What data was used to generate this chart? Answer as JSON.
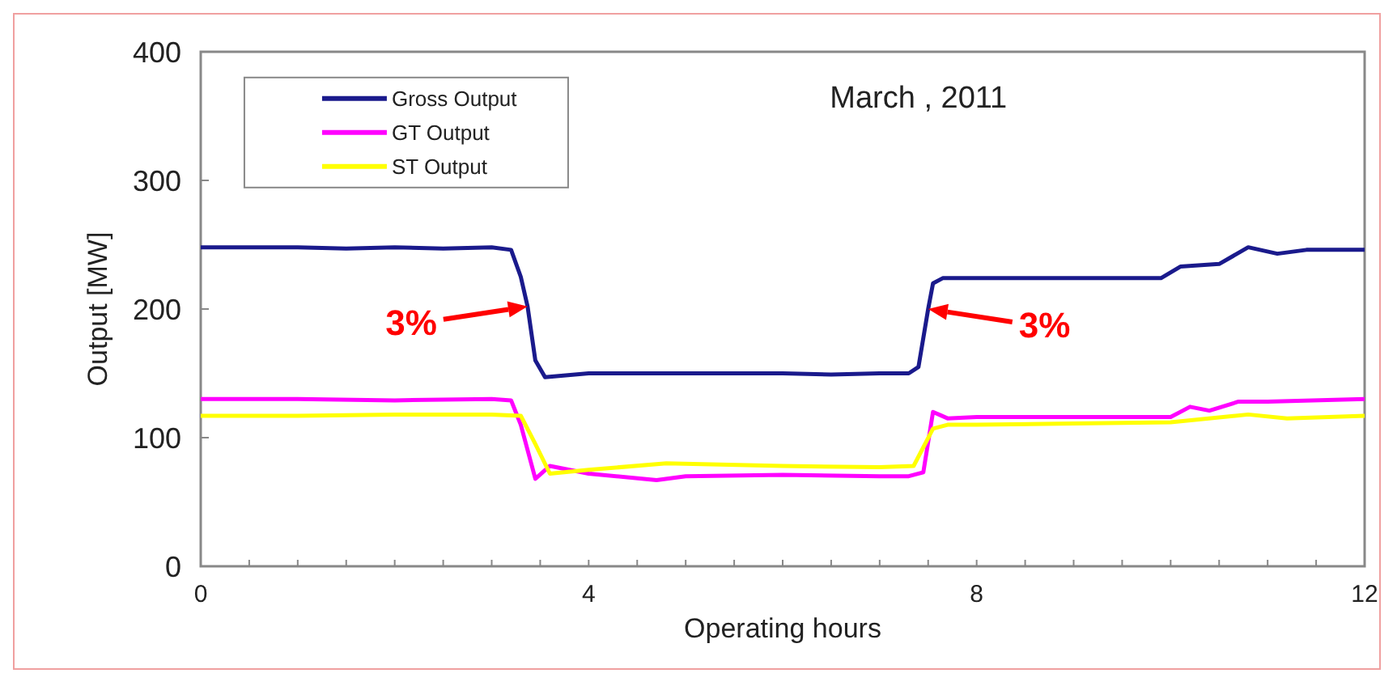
{
  "chart_data": {
    "type": "line",
    "title": "March , 2011",
    "xlabel": "Operating hours",
    "ylabel": "Output [MW]",
    "xlim": [
      0,
      12
    ],
    "ylim": [
      0,
      400
    ],
    "xticks": [
      0,
      {
        "value": 0.5,
        "label": null
      },
      {
        "value": 1,
        "label": null
      },
      {
        "value": 1.5,
        "label": null
      },
      {
        "value": 2,
        "label": null
      },
      {
        "value": 2.5,
        "label": null
      },
      {
        "value": 3,
        "label": null
      },
      {
        "value": 3.5,
        "label": null
      },
      4,
      {
        "value": 4.5,
        "label": null
      },
      {
        "value": 5,
        "label": null
      },
      {
        "value": 5.5,
        "label": null
      },
      {
        "value": 6,
        "label": null
      },
      {
        "value": 6.5,
        "label": null
      },
      {
        "value": 7,
        "label": null
      },
      {
        "value": 7.5,
        "label": null
      },
      8,
      {
        "value": 8.5,
        "label": null
      },
      {
        "value": 9,
        "label": null
      },
      {
        "value": 9.5,
        "label": null
      },
      {
        "value": 10,
        "label": null
      },
      {
        "value": 10.5,
        "label": null
      },
      {
        "value": 11,
        "label": null
      },
      {
        "value": 11.5,
        "label": null
      },
      12
    ],
    "yticks": [
      0,
      100,
      200,
      300,
      400
    ],
    "grid": false,
    "legend": "top left",
    "marker": "none",
    "line_style": "solid",
    "series": [
      {
        "name": "Gross Output",
        "color": "#1a1a8c",
        "x": [
          0,
          1,
          1.5,
          2,
          2.5,
          3,
          3.2,
          3.3,
          3.37,
          3.45,
          3.55,
          4,
          5,
          6,
          6.5,
          7,
          7.3,
          7.4,
          7.5,
          7.55,
          7.65,
          8,
          9,
          9.9,
          10.1,
          10.5,
          10.8,
          11.1,
          11.4,
          12
        ],
        "values": [
          248,
          248,
          247,
          248,
          247,
          248,
          246,
          225,
          202,
          160,
          147,
          150,
          150,
          150,
          149,
          150,
          150,
          155,
          200,
          220,
          224,
          224,
          224,
          224,
          233,
          235,
          248,
          243,
          246,
          246
        ]
      },
      {
        "name": "GT Output",
        "color": "#ff00ff",
        "x": [
          0,
          1,
          2,
          3,
          3.2,
          3.3,
          3.45,
          3.6,
          4,
          4.7,
          5,
          6,
          7,
          7.3,
          7.45,
          7.55,
          7.7,
          8,
          9,
          10,
          10.2,
          10.4,
          10.7,
          11,
          12
        ],
        "values": [
          130,
          130,
          129,
          130,
          129,
          110,
          68,
          78,
          72,
          67,
          70,
          71,
          70,
          70,
          73,
          120,
          115,
          116,
          116,
          116,
          124,
          121,
          128,
          128,
          130
        ]
      },
      {
        "name": "ST Output",
        "color": "#ffff00",
        "x": [
          0,
          1,
          2,
          3,
          3.3,
          3.45,
          3.6,
          4,
          4.8,
          6,
          7,
          7.35,
          7.55,
          7.7,
          8,
          9,
          10,
          10.8,
          11.2,
          12
        ],
        "values": [
          117,
          117,
          118,
          118,
          117,
          95,
          72,
          75,
          80,
          78,
          77,
          78,
          107,
          110,
          110,
          111,
          112,
          118,
          115,
          117
        ]
      }
    ],
    "annotations": [
      {
        "text": "3%",
        "x": 3.37,
        "y": 202
      },
      {
        "text": "3%",
        "x": 7.5,
        "y": 200
      }
    ]
  }
}
